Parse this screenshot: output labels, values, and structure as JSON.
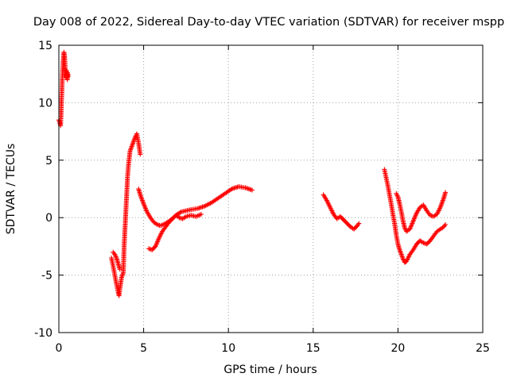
{
  "chart_data": {
    "type": "scatter",
    "title": "Day 008 of 2022, Sidereal Day-to-day VTEC variation (SDTVAR) for receiver mspp",
    "xlabel": "GPS time / hours",
    "ylabel": "SDTVAR / TECUs",
    "xlim": [
      0,
      25
    ],
    "ylim": [
      -10,
      15
    ],
    "xticks": [
      0,
      5,
      10,
      15,
      20,
      25
    ],
    "yticks": [
      -10,
      -5,
      0,
      5,
      10,
      15
    ],
    "xtick_labels": [
      "0",
      "5",
      "10",
      "15",
      "20",
      "25"
    ],
    "ytick_labels": [
      "-10",
      "-5",
      "0",
      "5",
      "10",
      "15"
    ],
    "grid": true,
    "marker": "+",
    "color": "#ff0000",
    "series": [
      {
        "name": "seg1",
        "x": [
          0.0,
          0.05,
          0.1,
          0.12,
          0.15,
          0.18,
          0.2,
          0.22,
          0.25,
          0.28,
          0.3,
          0.32,
          0.35,
          0.38,
          0.4,
          0.42,
          0.45,
          0.48,
          0.5,
          0.52,
          0.55
        ],
        "y": [
          8.5,
          8.3,
          8.0,
          8.6,
          10.0,
          11.0,
          12.0,
          12.7,
          13.5,
          14.0,
          14.4,
          14.2,
          13.8,
          13.0,
          12.5,
          12.2,
          12.8,
          12.3,
          12.0,
          12.6,
          12.3
        ]
      },
      {
        "name": "seg2",
        "x": [
          3.1,
          3.2,
          3.3,
          3.4,
          3.5,
          3.55,
          3.6,
          3.7,
          3.8,
          3.85,
          3.9,
          3.95,
          4.0,
          4.05,
          4.1,
          4.2,
          4.3,
          4.4,
          4.5,
          4.6,
          4.7,
          4.8
        ],
        "y": [
          -3.5,
          -4.2,
          -5.0,
          -5.8,
          -6.5,
          -6.8,
          -6.2,
          -5.2,
          -4.8,
          -2.5,
          -1.0,
          0.5,
          2.0,
          3.5,
          4.5,
          5.8,
          6.2,
          6.6,
          7.0,
          7.3,
          6.5,
          5.5
        ]
      },
      {
        "name": "seg3",
        "x": [
          3.2,
          3.3,
          3.4,
          3.5,
          3.6
        ],
        "y": [
          -3.0,
          -3.2,
          -3.5,
          -4.0,
          -4.5
        ]
      },
      {
        "name": "seg4",
        "x": [
          4.7,
          4.8,
          5.0,
          5.2,
          5.4,
          5.6,
          5.8,
          6.0,
          6.3,
          6.6,
          6.9,
          7.2,
          7.5,
          7.8,
          8.2,
          8.6,
          9.0,
          9.4,
          9.8,
          10.2,
          10.6,
          11.0,
          11.4
        ],
        "y": [
          2.5,
          2.0,
          1.2,
          0.5,
          0.0,
          -0.4,
          -0.6,
          -0.7,
          -0.5,
          -0.2,
          0.2,
          0.5,
          0.6,
          0.7,
          0.8,
          1.0,
          1.3,
          1.7,
          2.1,
          2.5,
          2.7,
          2.6,
          2.4
        ]
      },
      {
        "name": "seg5",
        "x": [
          5.3,
          5.5,
          5.7,
          5.9,
          6.1,
          6.3,
          6.5,
          6.7,
          6.9,
          7.1,
          7.3,
          7.5,
          7.8,
          8.1,
          8.4
        ],
        "y": [
          -2.7,
          -2.8,
          -2.5,
          -1.8,
          -1.2,
          -0.8,
          -0.4,
          -0.1,
          0.2,
          0.0,
          -0.1,
          0.1,
          0.2,
          0.1,
          0.3
        ]
      },
      {
        "name": "seg6",
        "x": [
          15.6,
          15.8,
          16.0,
          16.2,
          16.4,
          16.6,
          16.8,
          17.0,
          17.2,
          17.4,
          17.6,
          17.7
        ],
        "y": [
          2.0,
          1.5,
          0.9,
          0.3,
          -0.1,
          0.1,
          -0.2,
          -0.5,
          -0.8,
          -1.0,
          -0.7,
          -0.5
        ]
      },
      {
        "name": "seg7",
        "x": [
          19.2,
          19.3,
          19.4,
          19.5,
          19.6,
          19.7,
          19.8,
          19.9,
          20.0,
          20.1,
          20.2,
          20.3,
          20.4,
          20.5,
          20.7,
          20.9,
          21.1,
          21.3,
          21.5,
          21.7,
          21.9,
          22.1,
          22.3,
          22.5,
          22.7,
          22.8
        ],
        "y": [
          4.2,
          3.5,
          2.8,
          2.0,
          1.2,
          0.3,
          -0.5,
          -1.5,
          -2.3,
          -2.8,
          -3.2,
          -3.6,
          -3.9,
          -3.8,
          -3.2,
          -2.8,
          -2.3,
          -2.0,
          -2.2,
          -2.3,
          -2.0,
          -1.6,
          -1.2,
          -1.0,
          -0.8,
          -0.6
        ]
      },
      {
        "name": "seg8",
        "x": [
          19.9,
          20.0,
          20.1,
          20.2,
          20.3,
          20.4,
          20.5,
          20.7,
          20.9,
          21.1,
          21.3,
          21.5,
          21.7,
          21.9,
          22.1,
          22.3,
          22.5,
          22.7,
          22.8
        ],
        "y": [
          2.1,
          1.8,
          1.2,
          0.5,
          -0.3,
          -0.9,
          -1.2,
          -1.0,
          -0.3,
          0.4,
          0.9,
          1.1,
          0.6,
          0.2,
          0.1,
          0.3,
          0.9,
          1.7,
          2.2
        ]
      }
    ]
  }
}
